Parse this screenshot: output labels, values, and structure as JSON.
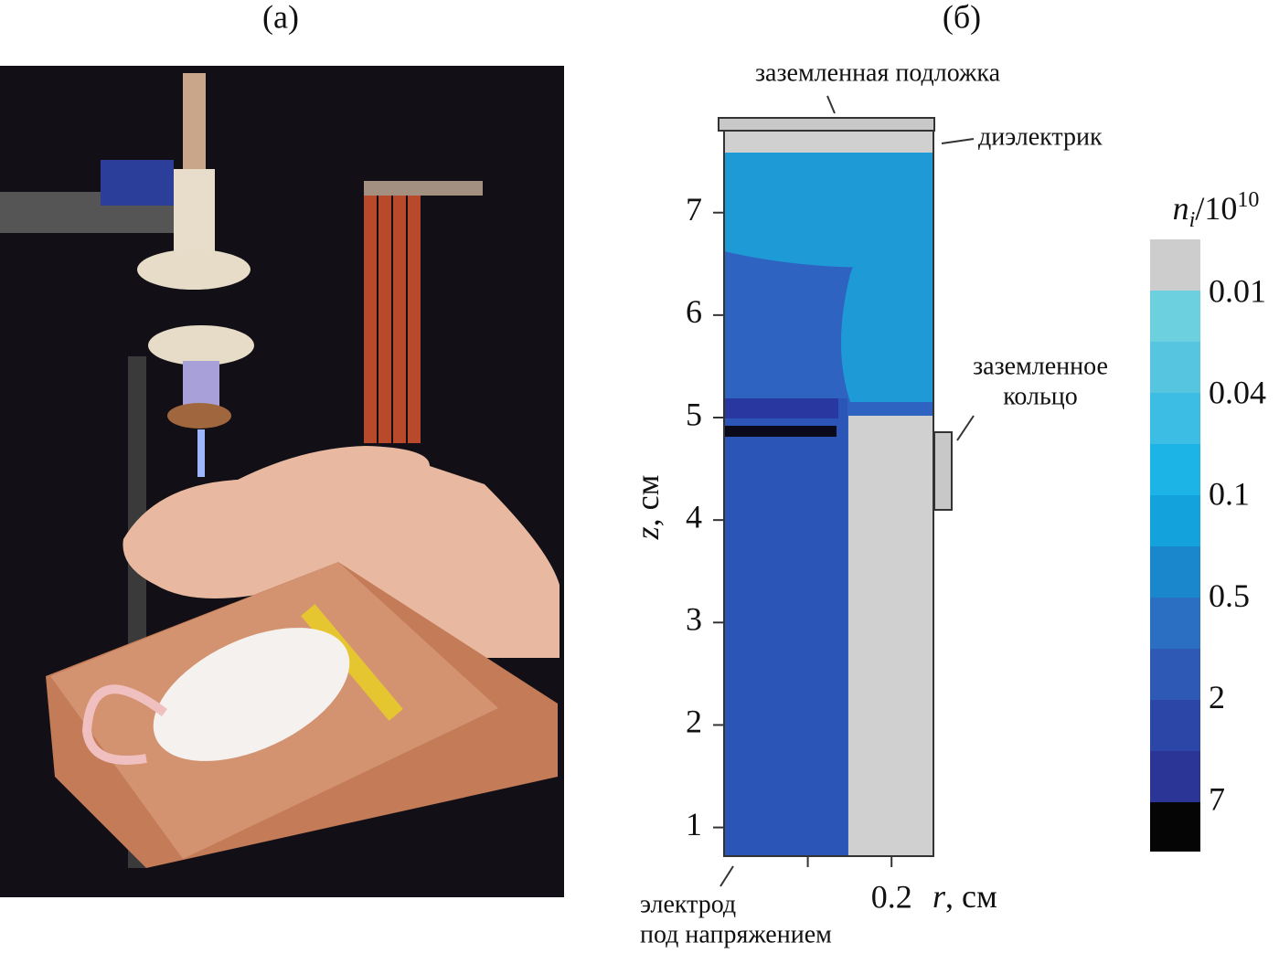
{
  "panel_a": {
    "label": "(а)"
  },
  "panel_b": {
    "label": "(б)",
    "annotations": {
      "substrate": "заземленная подложка",
      "dielectric": "диэлектрик",
      "ring": [
        "заземленное",
        "кольцо"
      ],
      "electrode": [
        "электрод",
        "под напряжением"
      ]
    },
    "y_axis": {
      "variable": "z",
      "unit": ", см",
      "ylim": [
        0.72,
        7.8
      ],
      "yticks": [
        1,
        2,
        3,
        4,
        5,
        6,
        7
      ]
    },
    "x_axis": {
      "variable": "r",
      "unit": ", см",
      "xlim": [
        0,
        0.25
      ],
      "xticks": [
        0.2
      ],
      "minor_xticks": [
        0.1
      ]
    },
    "colorbar": {
      "symbol": "n",
      "subscript": "i",
      "divider": "/10",
      "exponent": "10",
      "ticks": [
        0.01,
        0.04,
        0.1,
        0.5,
        2,
        7
      ]
    }
  }
}
